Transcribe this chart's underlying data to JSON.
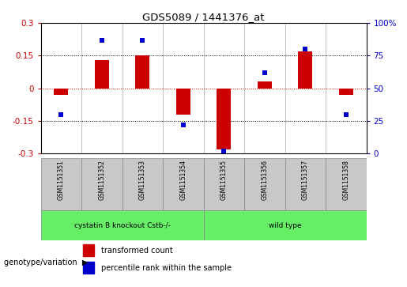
{
  "title": "GDS5089 / 1441376_at",
  "samples": [
    "GSM1151351",
    "GSM1151352",
    "GSM1151353",
    "GSM1151354",
    "GSM1151355",
    "GSM1151356",
    "GSM1151357",
    "GSM1151358"
  ],
  "bar_values": [
    -0.03,
    0.13,
    0.15,
    -0.12,
    -0.28,
    0.03,
    0.17,
    -0.03
  ],
  "scatter_values": [
    30,
    87,
    87,
    22,
    2,
    62,
    80,
    30
  ],
  "ylim_left": [
    -0.3,
    0.3
  ],
  "ylim_right": [
    0,
    100
  ],
  "yticks_left": [
    -0.3,
    -0.15,
    0,
    0.15,
    0.3
  ],
  "yticks_right": [
    0,
    25,
    50,
    75,
    100
  ],
  "hlines_dotted": [
    0.15,
    -0.15
  ],
  "hline_zero_color": "#cc0000",
  "group1_label": "cystatin B knockout Cstb-/-",
  "group2_label": "wild type",
  "group1_count": 4,
  "group2_count": 4,
  "bar_color": "#cc0000",
  "scatter_color": "#0000cc",
  "group_color": "#66ee66",
  "sample_bg_color": "#c8c8c8",
  "legend_bar_label": "transformed count",
  "legend_scatter_label": "percentile rank within the sample",
  "genotype_label": "genotype/variation",
  "background_color": "#ffffff",
  "bar_width": 0.35
}
